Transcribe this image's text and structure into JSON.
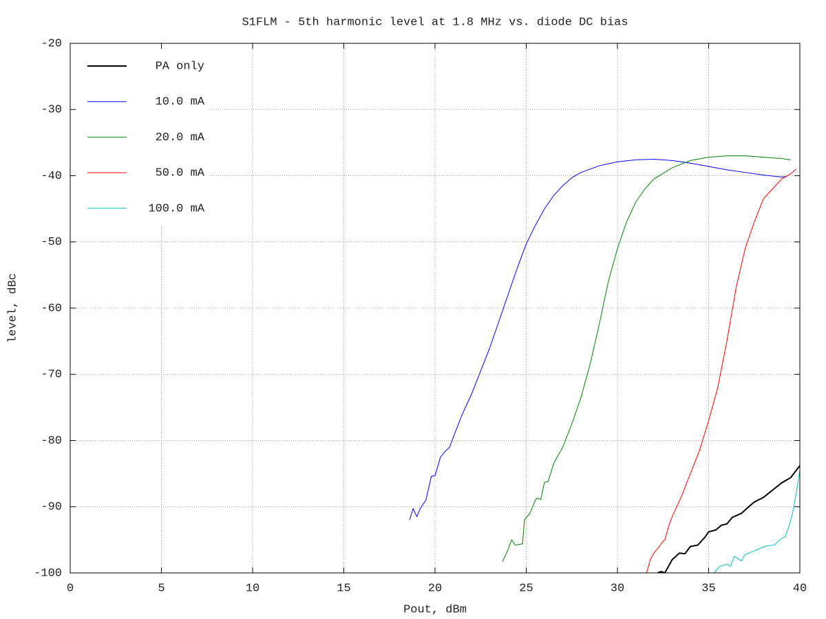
{
  "chart_data": {
    "type": "line",
    "title": "S1FLM - 5th harmonic level at 1.8 MHz vs. diode DC bias",
    "x_label": "Pout, dBm",
    "y_label": "level, dBc",
    "xlim": [
      0,
      40
    ],
    "xticks": [
      0,
      5,
      10,
      15,
      20,
      25,
      30,
      35,
      40
    ],
    "ylim": [
      -100,
      -20
    ],
    "yticks": [
      -100,
      -90,
      -80,
      -70,
      -60,
      -50,
      -40,
      -30,
      -20
    ],
    "grid": true,
    "legend": "upper left",
    "series": [
      {
        "name": "PA only",
        "color": "#000000",
        "x": [
          32.2,
          32.4,
          32.6,
          33,
          33.4,
          33.7,
          34,
          34.4,
          34.8,
          35,
          35.4,
          35.7,
          36,
          36.3,
          36.8,
          37.2,
          37.5,
          38,
          38.5,
          39,
          39.5,
          40
        ],
        "values": [
          -100,
          -99.8,
          -100,
          -98,
          -97,
          -97.1,
          -96,
          -95.8,
          -94.6,
          -93.8,
          -93.5,
          -92.8,
          -92.6,
          -91.6,
          -91,
          -90,
          -89.3,
          -88.6,
          -87.5,
          -86.4,
          -85.6,
          -83.8
        ]
      },
      {
        "name": "10.0 mA",
        "color": "#0000ff",
        "x": [
          18.6,
          18.8,
          19.0,
          19.2,
          19.5,
          19.8,
          20.0,
          20.3,
          20.5,
          20.8,
          21,
          21.5,
          22,
          22.5,
          23,
          23.5,
          24,
          24.5,
          25,
          25.5,
          26,
          26.5,
          27,
          27.5,
          28,
          29,
          30,
          31,
          32,
          33,
          34,
          35,
          36,
          37,
          38,
          39,
          39.3
        ],
        "values": [
          -92,
          -90.3,
          -91.5,
          -90.2,
          -89,
          -85.4,
          -85.3,
          -82.5,
          -81.8,
          -81,
          -79.5,
          -76,
          -73,
          -69.5,
          -66,
          -62,
          -58,
          -54,
          -50.3,
          -47.5,
          -45,
          -43,
          -41.5,
          -40.3,
          -39.5,
          -38.5,
          -37.9,
          -37.6,
          -37.5,
          -37.7,
          -38.1,
          -38.6,
          -39.1,
          -39.5,
          -39.9,
          -40.2,
          -40.1
        ]
      },
      {
        "name": "20.0 mA",
        "color": "#008000",
        "x": [
          23.7,
          24,
          24.2,
          24.4,
          24.8,
          24.9,
          25.2,
          25.5,
          25.6,
          25.8,
          26,
          26.2,
          26.5,
          27,
          27.5,
          28,
          28.5,
          29,
          29.5,
          30,
          30.5,
          31,
          31.5,
          32,
          33,
          34,
          35,
          36,
          37,
          38,
          39,
          39.5
        ],
        "values": [
          -98.3,
          -96.5,
          -95,
          -95.8,
          -95.6,
          -92,
          -91,
          -89,
          -88.7,
          -88.9,
          -86.3,
          -86.2,
          -83.5,
          -81,
          -77.5,
          -73.5,
          -68.5,
          -62.5,
          -56,
          -51,
          -47,
          -44,
          -42,
          -40.5,
          -38.8,
          -37.7,
          -37.2,
          -37.0,
          -37.0,
          -37.2,
          -37.4,
          -37.6
        ]
      },
      {
        "name": "50.0 mA",
        "color": "#ff0000",
        "x": [
          31.6,
          31.8,
          32,
          32.3,
          32.5,
          32.6,
          32.8,
          33,
          33.5,
          34,
          34.5,
          35,
          35.5,
          36,
          36.5,
          37,
          37.5,
          38,
          38.5,
          39,
          39.5,
          39.8
        ],
        "values": [
          -100,
          -98,
          -97,
          -96,
          -95.2,
          -95,
          -93,
          -91.5,
          -88.5,
          -85,
          -81.5,
          -77,
          -72,
          -65,
          -57,
          -51,
          -47,
          -43.5,
          -42,
          -40.5,
          -39.7,
          -39
        ]
      },
      {
        "name": "100.0 mA",
        "color": "#00c0c0",
        "x": [
          35.3,
          35.6,
          36,
          36.2,
          36.4,
          36.8,
          37,
          37.4,
          37.8,
          38.2,
          38.6,
          38.9,
          39.2,
          39.4,
          39.6,
          39.8,
          40
        ],
        "values": [
          -100,
          -99,
          -98.7,
          -99,
          -97.5,
          -98.2,
          -97.2,
          -96.8,
          -96.3,
          -95.9,
          -95.8,
          -95,
          -94.5,
          -93,
          -91,
          -88,
          -84.5
        ]
      }
    ]
  }
}
